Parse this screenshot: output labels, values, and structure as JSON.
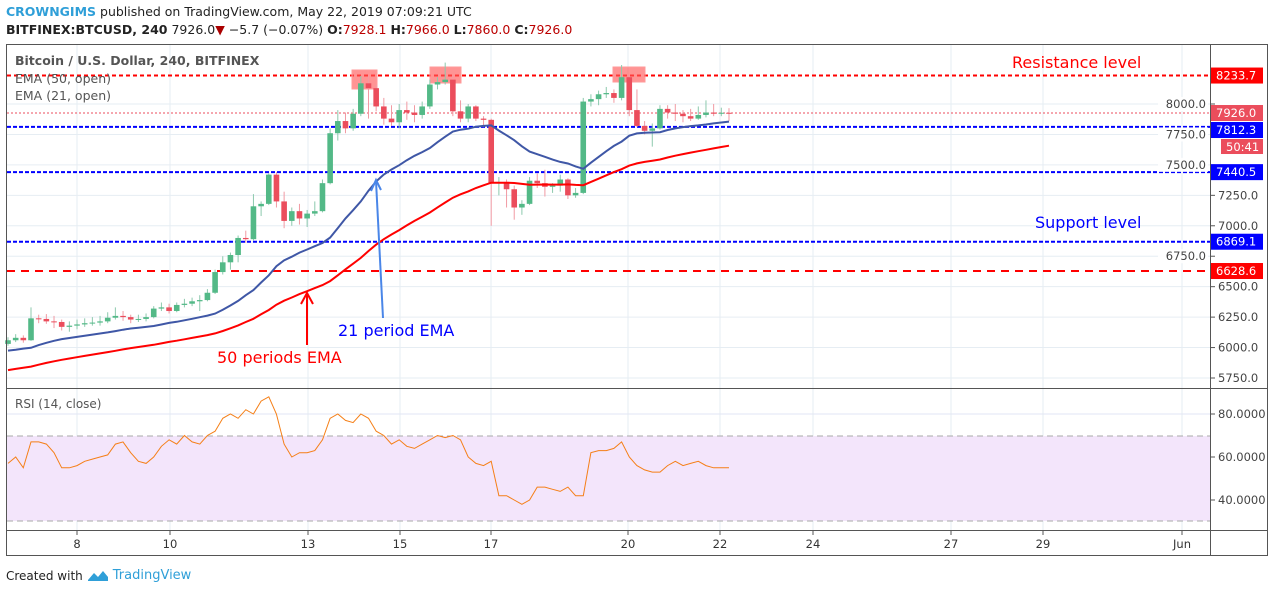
{
  "header": {
    "author": "CROWNGIMS",
    "published": "published on TradingView.com, May 22, 2019 07:09:21 UTC",
    "symbol": "BITFINEX:BTCUSD, 240",
    "last": "7926.0",
    "change": "−5.7 (−0.07%)",
    "o_label": "O:",
    "o": "7928.1",
    "h_label": "H:",
    "h": "7966.0",
    "l_label": "L:",
    "l": "7860.0",
    "c_label": "C:",
    "c": "7926.0"
  },
  "legend": {
    "title": "Bitcoin / U.S. Dollar, 240, BITFINEX",
    "ema50": "EMA (50, open)",
    "ema21": "EMA (21, open)",
    "rsi": "RSI (14, close)"
  },
  "annotations": {
    "resistance": "Resistance level",
    "support": "Support level",
    "ema21_note": "21 period EMA",
    "ema50_note": "50 periods EMA"
  },
  "footer": {
    "created_with": "Created with",
    "brand": "TradingView"
  },
  "colors": {
    "up": "#53b987",
    "down": "#eb4d5c",
    "ema21": "#3f57a6",
    "ema50": "#ff0000",
    "rsi": "#f57f17",
    "resistance": "#ff0000",
    "support": "#0000ff"
  },
  "chart_data": {
    "type": "candlestick",
    "interval": "240",
    "x_ticks": [
      "8",
      "10",
      "13",
      "15",
      "17",
      "20",
      "22",
      "24",
      "27",
      "29",
      "Jun"
    ],
    "y_ticks": [
      "8000.0",
      "7750.0",
      "7500.0",
      "7250.0",
      "7000.0",
      "6750.0",
      "6500.0",
      "6250.0",
      "6000.0",
      "5750.0"
    ],
    "ylim": [
      5700,
      8400
    ],
    "levels": [
      {
        "value": 8233.7,
        "label": "8233.7",
        "color": "#ff0000"
      },
      {
        "value": 7812.3,
        "label": "7812.3",
        "color": "#0000ff"
      },
      {
        "value": 7440.5,
        "label": "7440.5",
        "color": "#0000ff"
      },
      {
        "value": 6869.1,
        "label": "6869.1",
        "color": "#0000ff"
      },
      {
        "value": 6628.6,
        "label": "6628.6",
        "color": "#ff0000"
      }
    ],
    "last_price": {
      "value": 7926.0,
      "label": "7926.0",
      "countdown": "50:41"
    },
    "ohlc": [
      [
        6030,
        6085,
        6015,
        6060
      ],
      [
        6060,
        6110,
        6045,
        6080
      ],
      [
        6080,
        6100,
        6040,
        6060
      ],
      [
        6060,
        6330,
        6055,
        6240
      ],
      [
        6240,
        6270,
        6200,
        6235
      ],
      [
        6235,
        6275,
        6195,
        6215
      ],
      [
        6215,
        6260,
        6160,
        6210
      ],
      [
        6210,
        6230,
        6140,
        6170
      ],
      [
        6170,
        6215,
        6130,
        6180
      ],
      [
        6180,
        6230,
        6150,
        6190
      ],
      [
        6190,
        6240,
        6170,
        6200
      ],
      [
        6200,
        6250,
        6180,
        6205
      ],
      [
        6205,
        6260,
        6180,
        6215
      ],
      [
        6215,
        6290,
        6200,
        6245
      ],
      [
        6245,
        6330,
        6230,
        6260
      ],
      [
        6260,
        6300,
        6220,
        6250
      ],
      [
        6250,
        6270,
        6200,
        6230
      ],
      [
        6230,
        6270,
        6210,
        6235
      ],
      [
        6235,
        6280,
        6215,
        6250
      ],
      [
        6250,
        6340,
        6240,
        6320
      ],
      [
        6320,
        6370,
        6300,
        6330
      ],
      [
        6330,
        6360,
        6280,
        6300
      ],
      [
        6300,
        6370,
        6290,
        6350
      ],
      [
        6350,
        6400,
        6330,
        6360
      ],
      [
        6360,
        6410,
        6340,
        6380
      ],
      [
        6380,
        6430,
        6300,
        6390
      ],
      [
        6390,
        6480,
        6380,
        6450
      ],
      [
        6450,
        6640,
        6440,
        6620
      ],
      [
        6620,
        6750,
        6600,
        6700
      ],
      [
        6700,
        6780,
        6640,
        6760
      ],
      [
        6760,
        6920,
        6700,
        6900
      ],
      [
        6900,
        6960,
        6860,
        6890
      ],
      [
        6890,
        7260,
        6880,
        7160
      ],
      [
        7160,
        7200,
        7080,
        7180
      ],
      [
        7180,
        7430,
        7170,
        7420
      ],
      [
        7420,
        7440,
        7150,
        7200
      ],
      [
        7200,
        7280,
        6980,
        7040
      ],
      [
        7040,
        7150,
        7000,
        7120
      ],
      [
        7120,
        7180,
        7010,
        7060
      ],
      [
        7060,
        7130,
        6990,
        7100
      ],
      [
        7100,
        7200,
        7080,
        7120
      ],
      [
        7120,
        7380,
        7110,
        7350
      ],
      [
        7350,
        7800,
        7340,
        7760
      ],
      [
        7760,
        7950,
        7700,
        7860
      ],
      [
        7860,
        7930,
        7760,
        7800
      ],
      [
        7800,
        7960,
        7780,
        7920
      ],
      [
        7920,
        8230,
        7900,
        8170
      ],
      [
        8170,
        8230,
        7880,
        8130
      ],
      [
        8130,
        8160,
        7940,
        7980
      ],
      [
        7980,
        8050,
        7830,
        7880
      ],
      [
        7880,
        7990,
        7820,
        7850
      ],
      [
        7850,
        8000,
        7800,
        7950
      ],
      [
        7950,
        8020,
        7870,
        7930
      ],
      [
        7930,
        7990,
        7850,
        7910
      ],
      [
        7910,
        8020,
        7880,
        7980
      ],
      [
        7980,
        8200,
        7960,
        8160
      ],
      [
        8160,
        8220,
        8120,
        8180
      ],
      [
        8180,
        8340,
        8160,
        8200
      ],
      [
        8200,
        8230,
        7900,
        7940
      ],
      [
        7940,
        8030,
        7850,
        7880
      ],
      [
        7880,
        8000,
        7850,
        7980
      ],
      [
        7980,
        7990,
        7860,
        7880
      ],
      [
        7880,
        7900,
        7810,
        7870
      ],
      [
        7870,
        7880,
        7000,
        7350
      ],
      [
        7350,
        7400,
        7250,
        7360
      ],
      [
        7360,
        7380,
        7150,
        7300
      ],
      [
        7300,
        7330,
        7050,
        7150
      ],
      [
        7150,
        7210,
        7090,
        7180
      ],
      [
        7180,
        7400,
        7170,
        7370
      ],
      [
        7370,
        7430,
        7310,
        7350
      ],
      [
        7350,
        7460,
        7240,
        7320
      ],
      [
        7320,
        7350,
        7270,
        7330
      ],
      [
        7330,
        7420,
        7280,
        7380
      ],
      [
        7380,
        7390,
        7220,
        7250
      ],
      [
        7250,
        7310,
        7230,
        7270
      ],
      [
        7270,
        8050,
        7260,
        8020
      ],
      [
        8020,
        8080,
        7980,
        8040
      ],
      [
        8040,
        8110,
        7990,
        8080
      ],
      [
        8080,
        8140,
        8050,
        8090
      ],
      [
        8090,
        8120,
        8010,
        8050
      ],
      [
        8050,
        8320,
        8030,
        8220
      ],
      [
        8220,
        8240,
        7900,
        7950
      ],
      [
        7950,
        8120,
        7810,
        7820
      ],
      [
        7820,
        7860,
        7750,
        7780
      ],
      [
        7780,
        7840,
        7650,
        7800
      ],
      [
        7800,
        7990,
        7790,
        7960
      ],
      [
        7960,
        7990,
        7880,
        7930
      ],
      [
        7930,
        8000,
        7860,
        7920
      ],
      [
        7920,
        7950,
        7850,
        7900
      ],
      [
        7900,
        7960,
        7860,
        7880
      ],
      [
        7880,
        7980,
        7870,
        7910
      ],
      [
        7910,
        8030,
        7890,
        7930
      ],
      [
        7930,
        8000,
        7900,
        7920
      ],
      [
        7920,
        7970,
        7900,
        7928
      ],
      [
        7928,
        7966,
        7860,
        7926
      ]
    ],
    "rsi": {
      "y_ticks": [
        "80.0000",
        "60.0000",
        "40.0000"
      ],
      "bands": [
        30,
        70
      ],
      "values": [
        57,
        60,
        55,
        67,
        67,
        66,
        62,
        55,
        55,
        56,
        58,
        59,
        60,
        61,
        66,
        67,
        62,
        58,
        57,
        60,
        65,
        68,
        66,
        70,
        67,
        66,
        70,
        72,
        78,
        80,
        78,
        82,
        80,
        86,
        88,
        80,
        66,
        60,
        62,
        62,
        63,
        68,
        78,
        80,
        77,
        76,
        80,
        78,
        72,
        70,
        66,
        68,
        65,
        64,
        66,
        68,
        70,
        69,
        70,
        68,
        60,
        57,
        56,
        58,
        42,
        42,
        40,
        38,
        40,
        46,
        46,
        45,
        44,
        46,
        42,
        42,
        62,
        63,
        63,
        64,
        67,
        60,
        56,
        54,
        53,
        53,
        56,
        58,
        56,
        57,
        58,
        56,
        55,
        55,
        55
      ]
    }
  }
}
